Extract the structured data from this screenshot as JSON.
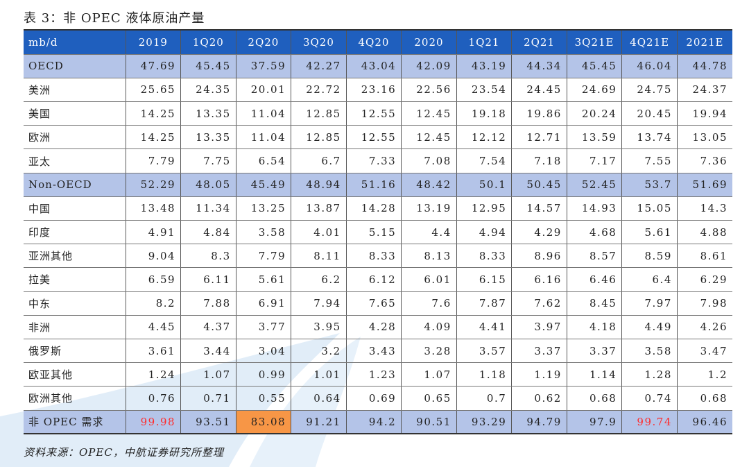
{
  "title": "表 3：非 OPEC 液体原油产量",
  "source": "资料来源：OPEC，中航证券研究所整理",
  "colors": {
    "header_bg": "#1f5fbe",
    "band_bg": "#b4c4e8",
    "red_text": "#ff2a2a",
    "orange_cell": "#f79646"
  },
  "table": {
    "unit_label": "mb/d",
    "columns": [
      "2019",
      "1Q20",
      "2Q20",
      "3Q20",
      "4Q20",
      "2020",
      "1Q21",
      "2Q21",
      "3Q21E",
      "4Q21E",
      "2021E"
    ],
    "rows": [
      {
        "label": "OECD",
        "style": "band",
        "values": [
          "47.69",
          "45.45",
          "37.59",
          "42.27",
          "43.04",
          "42.09",
          "43.19",
          "44.34",
          "45.45",
          "46.04",
          "44.78"
        ]
      },
      {
        "label": "美洲",
        "style": "",
        "values": [
          "25.65",
          "24.35",
          "20.01",
          "22.72",
          "23.16",
          "22.56",
          "23.54",
          "24.45",
          "24.69",
          "24.75",
          "24.37"
        ]
      },
      {
        "label": "美国",
        "style": "",
        "values": [
          "14.25",
          "13.35",
          "11.04",
          "12.85",
          "12.55",
          "12.45",
          "19.18",
          "19.86",
          "20.24",
          "20.45",
          "19.94"
        ]
      },
      {
        "label": "欧洲",
        "style": "",
        "values": [
          "14.25",
          "13.35",
          "11.04",
          "12.85",
          "12.55",
          "12.45",
          "12.12",
          "12.71",
          "13.59",
          "13.74",
          "13.05"
        ]
      },
      {
        "label": "亚太",
        "style": "",
        "values": [
          "7.79",
          "7.75",
          "6.54",
          "6.7",
          "7.33",
          "7.08",
          "7.54",
          "7.18",
          "7.17",
          "7.55",
          "7.36"
        ]
      },
      {
        "label": "Non-OECD",
        "style": "band",
        "values": [
          "52.29",
          "48.05",
          "45.49",
          "48.94",
          "51.16",
          "48.42",
          "50.1",
          "50.45",
          "52.45",
          "53.7",
          "51.69"
        ]
      },
      {
        "label": "中国",
        "style": "",
        "values": [
          "13.48",
          "11.34",
          "13.25",
          "13.87",
          "14.28",
          "13.19",
          "12.95",
          "14.57",
          "14.93",
          "15.05",
          "14.3"
        ]
      },
      {
        "label": "印度",
        "style": "",
        "values": [
          "4.91",
          "4.84",
          "3.58",
          "4.01",
          "5.15",
          "4.4",
          "4.94",
          "4.29",
          "4.68",
          "5.61",
          "4.88"
        ]
      },
      {
        "label": "亚洲其他",
        "style": "",
        "values": [
          "9.04",
          "8.3",
          "7.79",
          "8.11",
          "8.33",
          "8.13",
          "8.33",
          "8.96",
          "8.57",
          "8.59",
          "8.61"
        ]
      },
      {
        "label": "拉美",
        "style": "",
        "values": [
          "6.59",
          "6.11",
          "5.61",
          "6.2",
          "6.12",
          "6.01",
          "6.15",
          "6.16",
          "6.46",
          "6.4",
          "6.29"
        ]
      },
      {
        "label": "中东",
        "style": "",
        "values": [
          "8.2",
          "7.88",
          "6.91",
          "7.94",
          "7.65",
          "7.6",
          "7.87",
          "7.62",
          "8.45",
          "7.97",
          "7.98"
        ]
      },
      {
        "label": "非洲",
        "style": "",
        "values": [
          "4.45",
          "4.37",
          "3.77",
          "3.95",
          "4.28",
          "4.09",
          "4.41",
          "3.97",
          "4.18",
          "4.49",
          "4.26"
        ]
      },
      {
        "label": "俄罗斯",
        "style": "",
        "values": [
          "3.61",
          "3.44",
          "3.04",
          "3.2",
          "3.43",
          "3.28",
          "3.57",
          "3.37",
          "3.37",
          "3.58",
          "3.47"
        ]
      },
      {
        "label": "欧亚其他",
        "style": "",
        "values": [
          "1.24",
          "1.07",
          "0.99",
          "1.01",
          "1.23",
          "1.07",
          "1.18",
          "1.19",
          "1.14",
          "1.28",
          "1.2"
        ]
      },
      {
        "label": "欧洲其他",
        "style": "",
        "values": [
          "0.76",
          "0.71",
          "0.55",
          "0.64",
          "0.69",
          "0.65",
          "0.7",
          "0.62",
          "0.68",
          "0.74",
          "0.68"
        ]
      },
      {
        "label": "非 OPEC 需求",
        "style": "total",
        "values": [
          "99.98",
          "93.51",
          "83.08",
          "91.21",
          "94.2",
          "90.51",
          "93.29",
          "94.79",
          "97.9",
          "99.74",
          "96.46"
        ],
        "highlights": {
          "0": "red",
          "2": "orange",
          "9": "red"
        }
      }
    ]
  }
}
